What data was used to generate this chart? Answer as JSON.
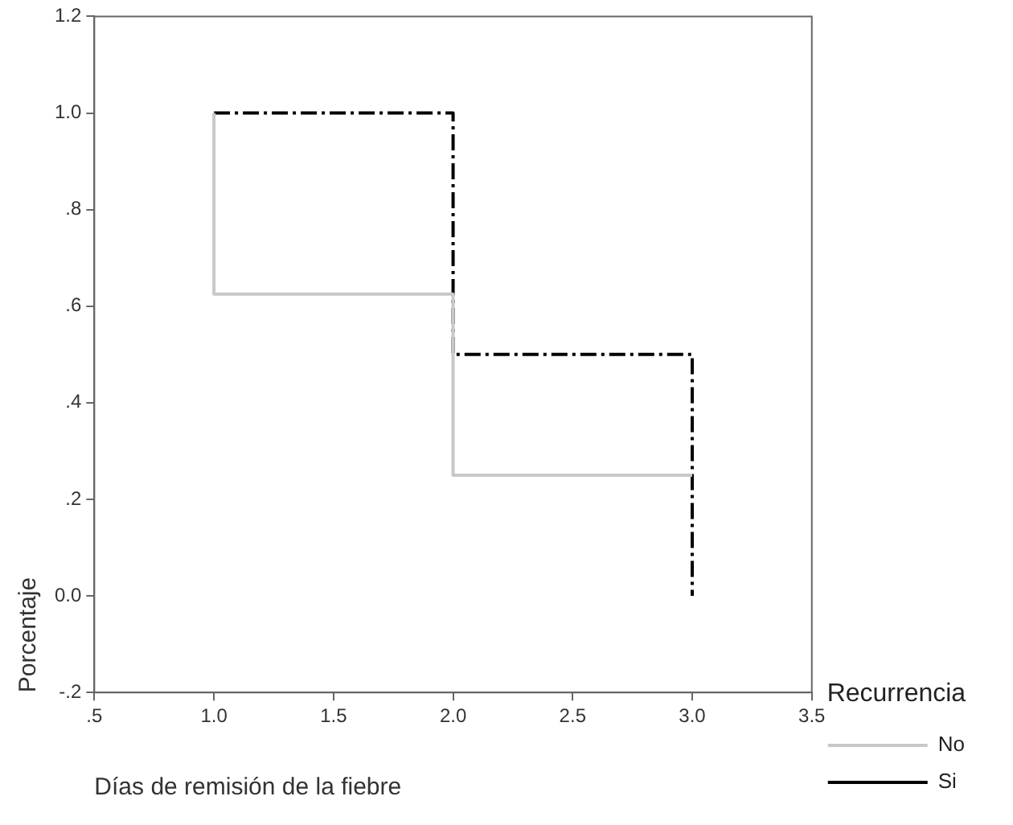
{
  "chart_data": {
    "type": "step",
    "xlabel": "Días de remisión de la fiebre",
    "ylabel": "Porcentaje",
    "legend_title": "Recurrencia",
    "series": [
      {
        "name": "No",
        "color": "#c8c8c8",
        "line_style": "solid",
        "x": [
          1,
          1,
          2,
          3
        ],
        "values": [
          1,
          0.625,
          0.25,
          0.25
        ]
      },
      {
        "name": "Si",
        "color": "#000000",
        "line_style": "dashed",
        "x": [
          1,
          2,
          3
        ],
        "values": [
          1,
          0.5,
          0
        ]
      }
    ],
    "xlim": [
      0.5,
      3.5
    ],
    "xticks": [
      {
        "value": 0.5,
        "label": ".5"
      },
      {
        "value": 1,
        "label": "1.0"
      },
      {
        "value": 1.5,
        "label": "1.5"
      },
      {
        "value": 2,
        "label": "2.0"
      },
      {
        "value": 2.5,
        "label": "2.5"
      },
      {
        "value": 3,
        "label": "3.0"
      },
      {
        "value": 3.5,
        "label": "3.5"
      }
    ],
    "ylim": [
      -0.2,
      1.2
    ],
    "yticks": [
      {
        "value": -0.2,
        "label": "-.2"
      },
      {
        "value": 0,
        "label": "0.0"
      },
      {
        "value": 0.2,
        "label": ".2"
      },
      {
        "value": 0.4,
        "label": ".4"
      },
      {
        "value": 0.6,
        "label": ".6"
      },
      {
        "value": 0.8,
        "label": ".8"
      },
      {
        "value": 1,
        "label": "1.0"
      },
      {
        "value": 1.2,
        "label": "1.2"
      }
    ],
    "grid": false,
    "legend": "right",
    "marker": "none"
  }
}
